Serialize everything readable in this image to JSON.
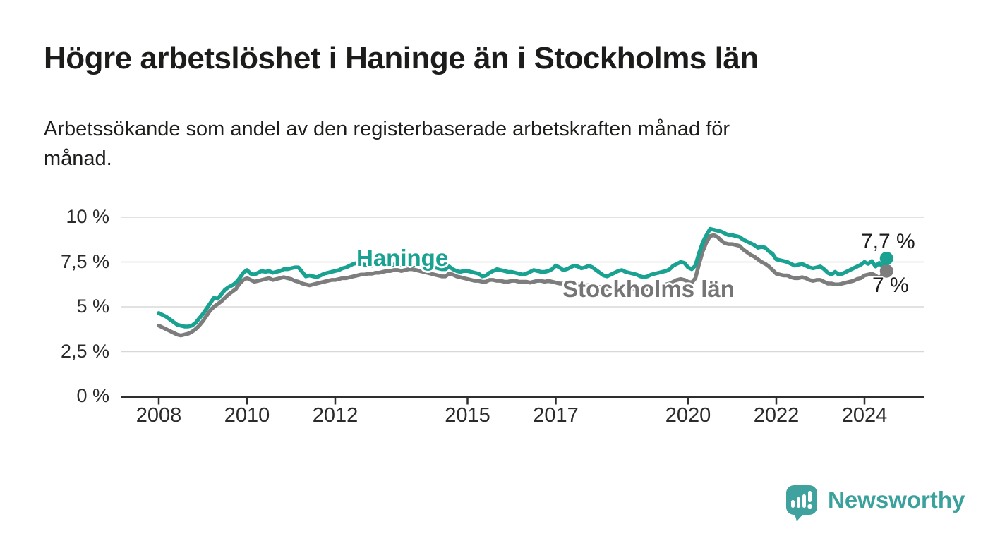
{
  "header": {
    "title": "Högre arbetslöshet i Haninge än i Stockholms län",
    "subtitle_lines": [
      "Arbetssökande som andel av den registerbaserade arbetskraften månad för",
      "månad."
    ]
  },
  "chart_data": {
    "type": "line",
    "unit": "%",
    "x_start_year": 2008,
    "points_per_year": 12,
    "x_end": "2024 (mid)",
    "y_axis": {
      "min": 0,
      "max": 10,
      "ticks": [
        {
          "value": 0,
          "label": "0 %"
        },
        {
          "value": 2.5,
          "label": "2,5 %"
        },
        {
          "value": 5,
          "label": "5 %"
        },
        {
          "value": 7.5,
          "label": "7,5 %"
        },
        {
          "value": 10,
          "label": "10 %"
        }
      ]
    },
    "x_axis": {
      "ticks": [
        {
          "year": 2008,
          "label": "2008"
        },
        {
          "year": 2010,
          "label": "2010"
        },
        {
          "year": 2012,
          "label": "2012"
        },
        {
          "year": 2015,
          "label": "2015"
        },
        {
          "year": 2017,
          "label": "2017"
        },
        {
          "year": 2020,
          "label": "2020"
        },
        {
          "year": 2022,
          "label": "2022"
        },
        {
          "year": 2024,
          "label": "2024"
        }
      ]
    },
    "series": [
      {
        "name": "Haninge",
        "label": "Haninge",
        "color": "#19a191",
        "end_value": 7.7,
        "end_label": "7,7 %",
        "values": [
          4.65,
          4.55,
          4.45,
          4.3,
          4.15,
          4,
          3.95,
          3.9,
          3.9,
          3.95,
          4.1,
          4.35,
          4.6,
          4.9,
          5.2,
          5.5,
          5.45,
          5.7,
          5.95,
          6.1,
          6.2,
          6.35,
          6.6,
          6.9,
          7.05,
          6.85,
          6.8,
          6.9,
          7,
          6.95,
          7,
          6.9,
          6.95,
          7,
          7.1,
          7.1,
          7.15,
          7.2,
          7.2,
          6.95,
          6.7,
          6.75,
          6.7,
          6.65,
          6.75,
          6.85,
          6.9,
          6.95,
          7,
          7.05,
          7.15,
          7.2,
          7.3,
          7.4,
          7.45,
          7.4,
          7.35,
          7.3,
          7.3,
          7.35,
          7.35,
          7.4,
          7.45,
          7.4,
          7.35,
          7.3,
          7.35,
          7.4,
          7.35,
          7.3,
          7.35,
          7.4,
          7.35,
          7.3,
          7.25,
          7.2,
          7.15,
          7.1,
          7.1,
          7.25,
          7.1,
          7,
          6.95,
          7,
          7,
          6.95,
          6.9,
          6.85,
          6.7,
          6.75,
          6.9,
          7,
          7.1,
          7.05,
          7,
          6.95,
          6.95,
          6.9,
          6.85,
          6.8,
          6.85,
          6.95,
          7.05,
          7,
          6.95,
          6.95,
          7,
          7.1,
          7.3,
          7.2,
          7.05,
          7.1,
          7.2,
          7.3,
          7.25,
          7.15,
          7.2,
          7.3,
          7.2,
          7.05,
          6.9,
          6.75,
          6.7,
          6.8,
          6.9,
          7,
          7.05,
          6.95,
          6.9,
          6.85,
          6.8,
          6.7,
          6.65,
          6.7,
          6.8,
          6.85,
          6.9,
          6.95,
          7,
          7.1,
          7.3,
          7.4,
          7.5,
          7.45,
          7.2,
          7.1,
          7.3,
          8,
          8.6,
          9,
          9.35,
          9.3,
          9.25,
          9.2,
          9.1,
          9,
          9,
          8.95,
          8.9,
          8.75,
          8.65,
          8.55,
          8.45,
          8.3,
          8.35,
          8.3,
          8.1,
          7.95,
          7.65,
          7.6,
          7.55,
          7.5,
          7.4,
          7.3,
          7.35,
          7.4,
          7.3,
          7.2,
          7.15,
          7.2,
          7.25,
          7.1,
          6.9,
          6.8,
          6.95,
          6.8,
          6.85,
          6.95,
          7.05,
          7.15,
          7.25,
          7.35,
          7.5,
          7.4,
          7.55,
          7.25,
          7.45,
          7.2,
          7.7
        ]
      },
      {
        "name": "Stockholms län",
        "label": "Stockholms län",
        "color": "#7d7d7d",
        "end_value": 7.0,
        "end_label": "7 %",
        "values": [
          3.95,
          3.85,
          3.75,
          3.65,
          3.55,
          3.45,
          3.4,
          3.45,
          3.5,
          3.6,
          3.75,
          3.95,
          4.2,
          4.5,
          4.8,
          5,
          5.15,
          5.3,
          5.5,
          5.7,
          5.85,
          6,
          6.3,
          6.5,
          6.6,
          6.5,
          6.4,
          6.45,
          6.5,
          6.55,
          6.6,
          6.5,
          6.55,
          6.6,
          6.65,
          6.6,
          6.55,
          6.45,
          6.4,
          6.3,
          6.25,
          6.2,
          6.25,
          6.3,
          6.35,
          6.4,
          6.45,
          6.5,
          6.5,
          6.55,
          6.6,
          6.6,
          6.65,
          6.7,
          6.75,
          6.8,
          6.8,
          6.85,
          6.85,
          6.9,
          6.9,
          6.95,
          7,
          7,
          7.05,
          7.05,
          7,
          7.05,
          7.1,
          7.1,
          7.05,
          7,
          6.95,
          6.9,
          6.85,
          6.8,
          6.75,
          6.7,
          6.7,
          6.85,
          6.8,
          6.7,
          6.65,
          6.6,
          6.55,
          6.5,
          6.45,
          6.45,
          6.4,
          6.4,
          6.5,
          6.5,
          6.45,
          6.45,
          6.4,
          6.4,
          6.45,
          6.45,
          6.4,
          6.4,
          6.4,
          6.35,
          6.4,
          6.45,
          6.45,
          6.4,
          6.45,
          6.4,
          6.35,
          6.3,
          6.3,
          6.3,
          6.3,
          6.3,
          6.25,
          6.25,
          6.2,
          6.2,
          6.2,
          6.15,
          6.1,
          6.05,
          6,
          6.05,
          6.1,
          6.1,
          6.15,
          6.1,
          6.05,
          6,
          6,
          5.95,
          5.95,
          6,
          6.05,
          6.1,
          6.15,
          6.2,
          6.25,
          6.3,
          6.4,
          6.5,
          6.55,
          6.5,
          6.4,
          6.35,
          6.6,
          7.4,
          8.1,
          8.6,
          8.95,
          9,
          8.9,
          8.7,
          8.55,
          8.5,
          8.5,
          8.45,
          8.4,
          8.2,
          8.05,
          7.9,
          7.8,
          7.65,
          7.5,
          7.4,
          7.25,
          7.05,
          6.85,
          6.8,
          6.75,
          6.75,
          6.65,
          6.6,
          6.6,
          6.65,
          6.6,
          6.5,
          6.45,
          6.5,
          6.5,
          6.4,
          6.3,
          6.3,
          6.25,
          6.25,
          6.3,
          6.35,
          6.4,
          6.45,
          6.55,
          6.6,
          6.75,
          6.8,
          6.85,
          6.75,
          6.6,
          6.8,
          7
        ]
      }
    ],
    "style": {
      "grid_color": "#d8d8d8",
      "axis_color": "#2e2e2e",
      "text_color": "#2b2b2b"
    }
  },
  "footer": {
    "brand": "Newsworthy",
    "brand_color": "#3aa19c",
    "brand_icon": "speech-bubble-bar-chart-exclamation"
  }
}
